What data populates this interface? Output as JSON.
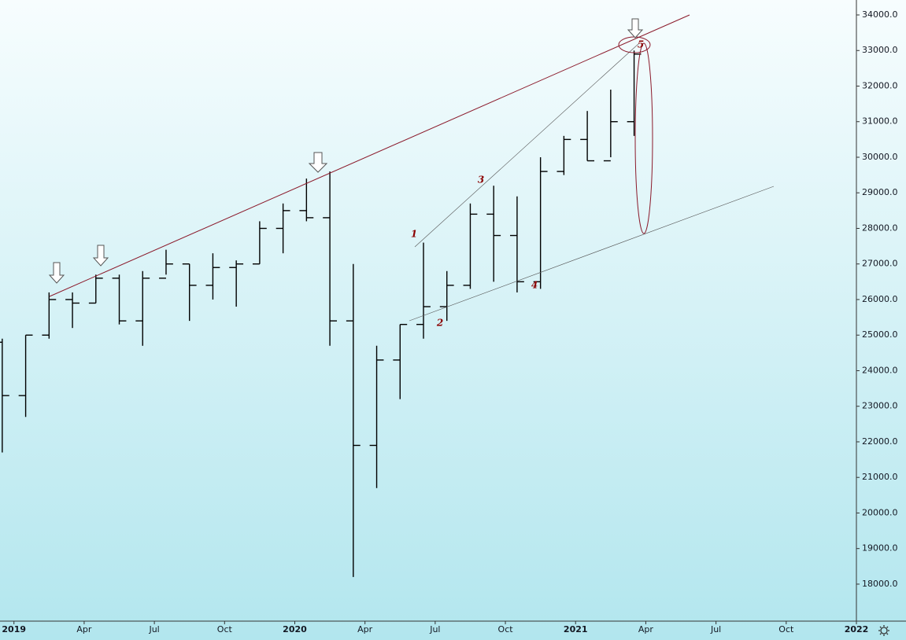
{
  "chart_data": {
    "type": "ohlc",
    "x": [
      "2018-12",
      "2019-01",
      "2019-02",
      "2019-03",
      "2019-04",
      "2019-05",
      "2019-06",
      "2019-07",
      "2019-08",
      "2019-09",
      "2019-10",
      "2019-11",
      "2019-12",
      "2020-01",
      "2020-02",
      "2020-03",
      "2020-04",
      "2020-05",
      "2020-06",
      "2020-07",
      "2020-08",
      "2020-09",
      "2020-10",
      "2020-11",
      "2020-12",
      "2021-01",
      "2021-02",
      "2021-03"
    ],
    "open": [
      24800,
      23300,
      25000,
      26000,
      25900,
      26600,
      25400,
      26600,
      27000,
      26400,
      26900,
      27000,
      28000,
      28500,
      28300,
      25400,
      21900,
      24300,
      25300,
      25800,
      26400,
      28400,
      27800,
      26500,
      29600,
      30500,
      29900,
      31000
    ],
    "high": [
      24900,
      25000,
      26200,
      26200,
      26700,
      26700,
      26800,
      27400,
      27000,
      27300,
      27100,
      28200,
      28700,
      29400,
      29600,
      27000,
      24700,
      25300,
      27600,
      26800,
      28700,
      29200,
      28900,
      30000,
      30600,
      31300,
      31900,
      33000
    ],
    "low": [
      21700,
      22700,
      24900,
      25200,
      25900,
      25300,
      24700,
      26700,
      25400,
      26000,
      25800,
      27000,
      27300,
      28200,
      24700,
      18200,
      20700,
      23200,
      24900,
      25400,
      26300,
      26500,
      26200,
      26300,
      29500,
      29900,
      30000,
      30600
    ],
    "close": [
      23300,
      25000,
      26000,
      25900,
      26600,
      25400,
      26600,
      27000,
      26400,
      26900,
      27000,
      28000,
      28500,
      28300,
      25400,
      21900,
      24300,
      25300,
      25800,
      26400,
      28400,
      27800,
      26500,
      29600,
      30500,
      29900,
      31000,
      32900
    ],
    "color": "#000000",
    "xlim": [
      "2018-12",
      "2022-01"
    ],
    "xticks": [
      {
        "value": "2019-01",
        "label": "2019"
      },
      {
        "value": "2019-04",
        "label": "Apr"
      },
      {
        "value": "2019-07",
        "label": "Jul"
      },
      {
        "value": "2019-10",
        "label": "Oct"
      },
      {
        "value": "2020-01",
        "label": "2020"
      },
      {
        "value": "2020-04",
        "label": "Apr"
      },
      {
        "value": "2020-07",
        "label": "Jul"
      },
      {
        "value": "2020-10",
        "label": "Oct"
      },
      {
        "value": "2021-01",
        "label": "2021"
      },
      {
        "value": "2021-04",
        "label": "Apr"
      },
      {
        "value": "2021-07",
        "label": "Jul"
      },
      {
        "value": "2021-10",
        "label": "Oct"
      },
      {
        "value": "2022-01",
        "label": "2022"
      }
    ],
    "ylim": [
      16960,
      34420
    ],
    "yticks": [
      {
        "value": 18000,
        "label": "18000.0"
      },
      {
        "value": 19000,
        "label": "19000.0"
      },
      {
        "value": 20000,
        "label": "20000.0"
      },
      {
        "value": 21000,
        "label": "21000.0"
      },
      {
        "value": 22000,
        "label": "22000.0"
      },
      {
        "value": 23000,
        "label": "23000.0"
      },
      {
        "value": 24000,
        "label": "24000.0"
      },
      {
        "value": 25000,
        "label": "25000.0"
      },
      {
        "value": 26000,
        "label": "26000.0"
      },
      {
        "value": 27000,
        "label": "27000.0"
      },
      {
        "value": 28000,
        "label": "28000.0"
      },
      {
        "value": 29000,
        "label": "29000.0"
      },
      {
        "value": 30000,
        "label": "30000.0"
      },
      {
        "value": 31000,
        "label": "31000.0"
      },
      {
        "value": 32000,
        "label": "32000.0"
      },
      {
        "value": 33000,
        "label": "33000.0"
      },
      {
        "value": 34000,
        "label": "34000.0"
      }
    ],
    "annotations": [
      "1",
      "2",
      "3",
      "4",
      "5"
    ]
  }
}
